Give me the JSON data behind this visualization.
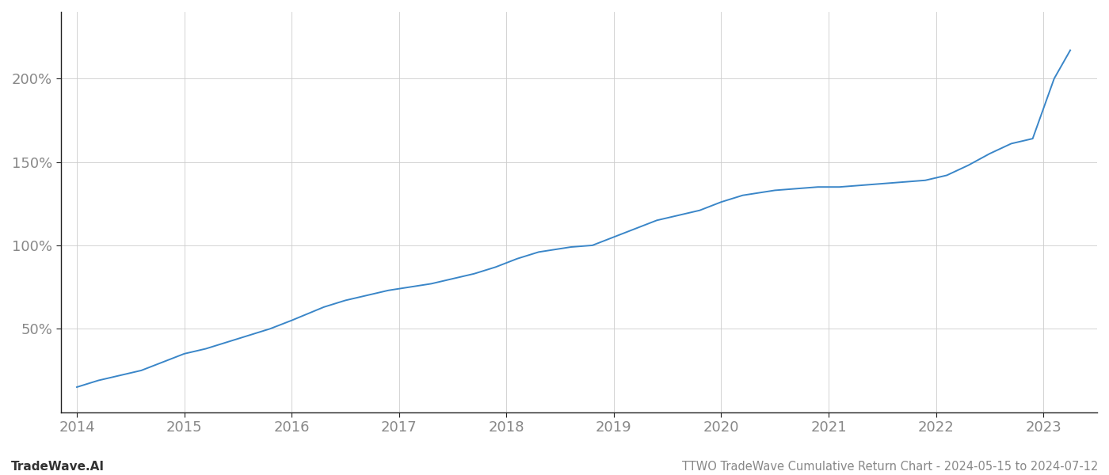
{
  "title": "TTWO TradeWave Cumulative Return Chart - 2024-05-15 to 2024-07-12",
  "watermark": "TradeWave.AI",
  "line_color": "#3a86c8",
  "background_color": "#ffffff",
  "grid_color": "#cccccc",
  "x_years": [
    2014,
    2015,
    2016,
    2017,
    2018,
    2019,
    2020,
    2021,
    2022,
    2023
  ],
  "x_data": [
    2014.0,
    2014.1,
    2014.2,
    2014.4,
    2014.6,
    2014.8,
    2015.0,
    2015.2,
    2015.4,
    2015.6,
    2015.8,
    2016.0,
    2016.15,
    2016.3,
    2016.5,
    2016.7,
    2016.9,
    2017.1,
    2017.3,
    2017.5,
    2017.7,
    2017.9,
    2018.1,
    2018.3,
    2018.5,
    2018.6,
    2018.8,
    2019.0,
    2019.2,
    2019.4,
    2019.6,
    2019.8,
    2020.0,
    2020.2,
    2020.5,
    2020.7,
    2020.9,
    2021.1,
    2021.3,
    2021.5,
    2021.7,
    2021.9,
    2022.1,
    2022.3,
    2022.5,
    2022.7,
    2022.9,
    2023.1,
    2023.25
  ],
  "y_data": [
    15,
    17,
    19,
    22,
    25,
    30,
    35,
    38,
    42,
    46,
    50,
    55,
    59,
    63,
    67,
    70,
    73,
    75,
    77,
    80,
    83,
    87,
    92,
    96,
    98,
    99,
    100,
    105,
    110,
    115,
    118,
    121,
    126,
    130,
    133,
    134,
    135,
    135,
    136,
    137,
    138,
    139,
    142,
    148,
    155,
    161,
    164,
    200,
    217
  ],
  "yticks": [
    50,
    100,
    150,
    200
  ],
  "ytick_labels": [
    "50%",
    "100%",
    "150%",
    "200%"
  ],
  "ylim": [
    0,
    240
  ],
  "xlim": [
    2013.85,
    2023.5
  ],
  "title_fontsize": 10.5,
  "watermark_fontsize": 11,
  "tick_fontsize": 13,
  "tick_color": "#888888",
  "spine_color": "#222222",
  "grid_linewidth": 0.6,
  "line_width": 1.4
}
